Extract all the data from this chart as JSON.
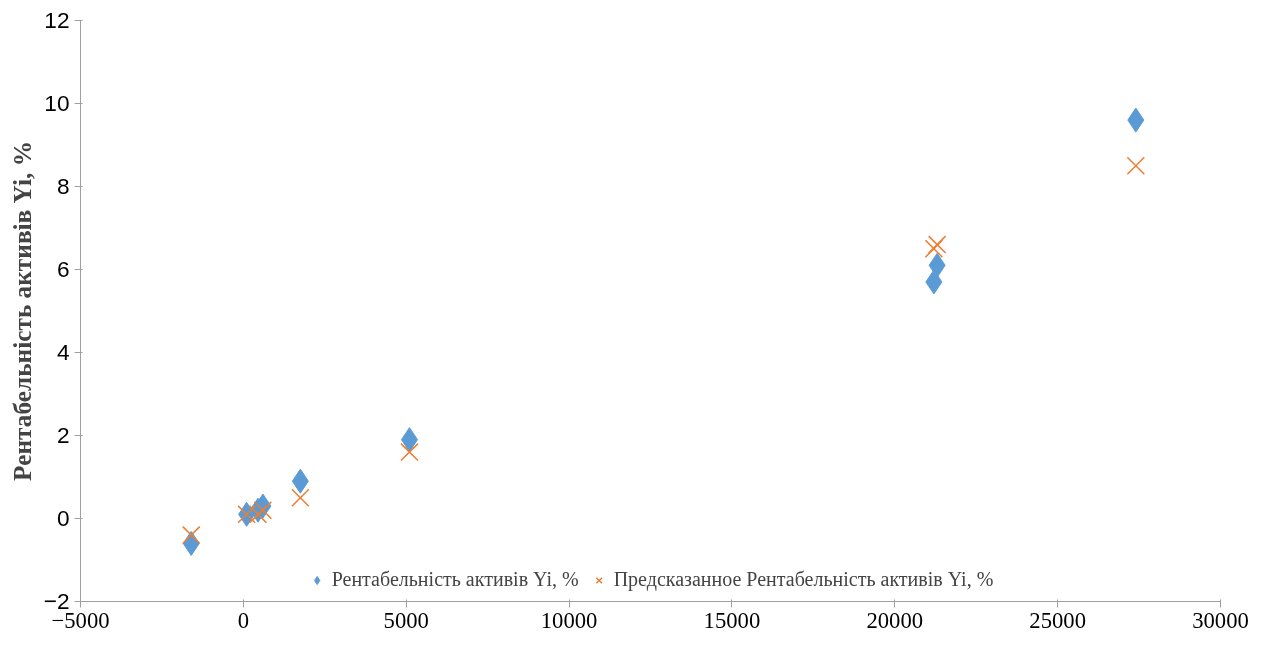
{
  "chart_data": {
    "type": "scatter",
    "ylabel": "Рентабельність активів Yi, %",
    "x": [
      -1600,
      100,
      450,
      600,
      1750,
      5100,
      21200,
      21300,
      27400
    ],
    "series": [
      {
        "name": "Рентабельність активів Yi, %",
        "color": "#5b9bd5",
        "marker": "diamond",
        "values": [
          -0.6,
          0.1,
          0.2,
          0.3,
          0.9,
          1.9,
          5.7,
          6.1,
          9.6
        ]
      },
      {
        "name": "Предсказанное Рентабельність активів Yi, %",
        "color": "#ed7d31",
        "marker": "cross",
        "values": [
          -0.4,
          0.1,
          0.1,
          0.2,
          0.5,
          1.6,
          6.5,
          6.6,
          8.5
        ]
      }
    ],
    "xlim": [
      -5000,
      30000
    ],
    "xticks": [
      -5000,
      0,
      5000,
      10000,
      15000,
      20000,
      25000,
      30000
    ],
    "ylim": [
      -2,
      12
    ],
    "yticks": [
      -2,
      0,
      2,
      4,
      6,
      8,
      10,
      12
    ],
    "grid": false,
    "legend": "bottom"
  }
}
